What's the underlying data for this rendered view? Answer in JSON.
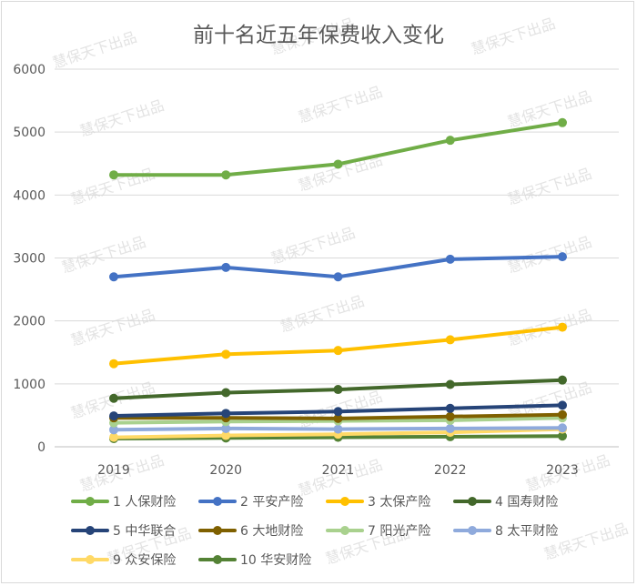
{
  "chart_data": {
    "type": "line",
    "title": "前十名近五年保费收入变化",
    "xlabel": "",
    "ylabel": "",
    "categories": [
      "2019",
      "2020",
      "2021",
      "2022",
      "2023"
    ],
    "ylim": [
      0,
      6000
    ],
    "yticks": [
      "0",
      "1000",
      "2000",
      "3000",
      "4000",
      "5000",
      "6000"
    ],
    "grid": true,
    "legend_position": "bottom",
    "watermark": "慧保天下出品",
    "series": [
      {
        "name": "1 人保财险",
        "color": "#70ad47",
        "values": [
          4320,
          4320,
          4490,
          4870,
          5150
        ]
      },
      {
        "name": "2 平安产险",
        "color": "#4472c4",
        "values": [
          2700,
          2850,
          2700,
          2980,
          3020
        ]
      },
      {
        "name": "3 太保产险",
        "color": "#ffc000",
        "values": [
          1320,
          1470,
          1530,
          1700,
          1900
        ]
      },
      {
        "name": "4 国寿财险",
        "color": "#43682b",
        "values": [
          770,
          860,
          910,
          990,
          1060
        ]
      },
      {
        "name": "5 中华联合",
        "color": "#264478",
        "values": [
          490,
          530,
          560,
          610,
          660
        ]
      },
      {
        "name": "6 大地财险",
        "color": "#7f6000",
        "values": [
          460,
          460,
          450,
          480,
          510
        ]
      },
      {
        "name": "7 阳光产险",
        "color": "#a9d18e",
        "values": [
          380,
          400,
          410,
          420,
          460
        ]
      },
      {
        "name": "8 太平财险",
        "color": "#8faadc",
        "values": [
          270,
          290,
          280,
          290,
          300
        ]
      },
      {
        "name": "9 众安保险",
        "color": "#ffd966",
        "values": [
          150,
          180,
          200,
          230,
          280
        ]
      },
      {
        "name": "10 华安财险",
        "color": "#548235",
        "values": [
          130,
          140,
          150,
          160,
          170
        ]
      }
    ]
  }
}
